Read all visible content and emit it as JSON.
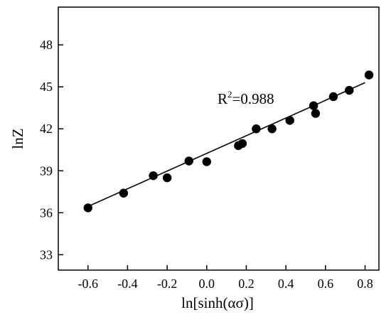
{
  "chart_data": {
    "type": "scatter",
    "xlabel": "ln[sinh(ασ)]",
    "ylabel": "lnZ",
    "xlim": [
      -0.75,
      0.87
    ],
    "ylim": [
      31.9,
      50.7
    ],
    "x_ticks": [
      -0.6,
      -0.4,
      -0.2,
      0.0,
      0.2,
      0.4,
      0.6,
      0.8
    ],
    "x_tick_labels": [
      "-0.6",
      "-0.4",
      "-0.2",
      "0.0",
      "0.2",
      "0.4",
      "0.6",
      "0.8"
    ],
    "y_ticks": [
      33,
      36,
      39,
      42,
      45,
      48
    ],
    "y_tick_labels": [
      "33",
      "36",
      "39",
      "42",
      "45",
      "48"
    ],
    "grid": false,
    "legend": "none",
    "colors": {
      "points": "#000000",
      "line": "#000000"
    },
    "points": [
      {
        "x": -0.6,
        "y": 36.35
      },
      {
        "x": -0.42,
        "y": 37.4
      },
      {
        "x": -0.27,
        "y": 38.65
      },
      {
        "x": -0.2,
        "y": 38.5
      },
      {
        "x": -0.09,
        "y": 39.7
      },
      {
        "x": 0.0,
        "y": 39.65
      },
      {
        "x": 0.16,
        "y": 40.8
      },
      {
        "x": 0.18,
        "y": 40.95
      },
      {
        "x": 0.25,
        "y": 42.0
      },
      {
        "x": 0.33,
        "y": 42.0
      },
      {
        "x": 0.42,
        "y": 42.6
      },
      {
        "x": 0.54,
        "y": 43.65
      },
      {
        "x": 0.55,
        "y": 43.1
      },
      {
        "x": 0.64,
        "y": 44.3
      },
      {
        "x": 0.72,
        "y": 44.75
      },
      {
        "x": 0.82,
        "y": 45.85
      }
    ],
    "fit_line": {
      "x": [
        -0.6,
        0.8
      ],
      "y": [
        36.45,
        45.3
      ]
    },
    "annotation": {
      "base": "R",
      "sup": "2",
      "rest": "=0.988"
    }
  }
}
